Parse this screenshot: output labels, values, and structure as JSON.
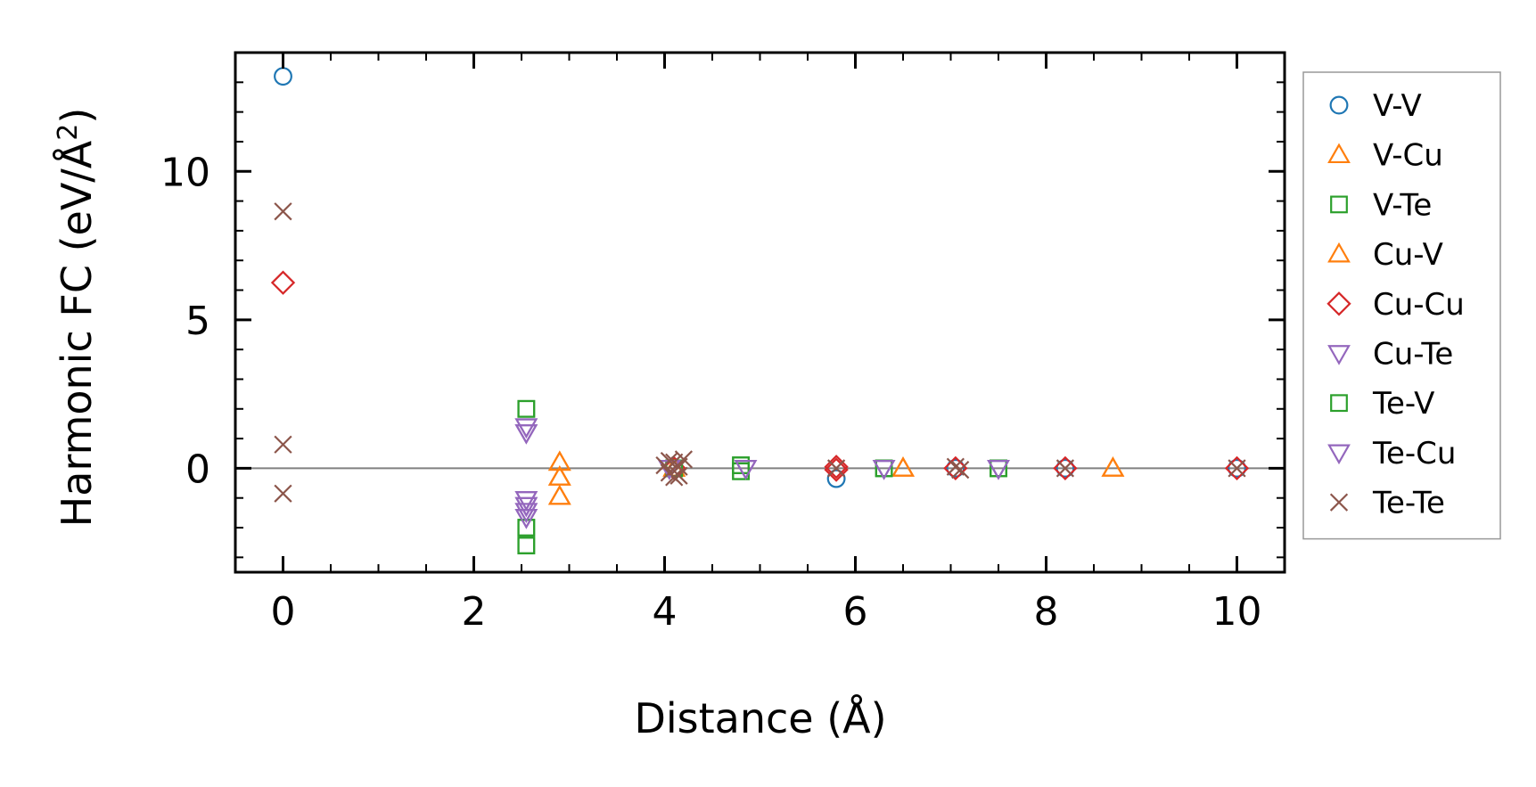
{
  "chart_data": {
    "type": "scatter",
    "xlabel": "Distance (Å)",
    "ylabel_main": "Harmonic FC (eV/Å",
    "ylabel_sup": "2",
    "ylabel_close": ")",
    "xlim": [
      -0.5,
      10.5
    ],
    "ylim": [
      -3.5,
      14
    ],
    "xticks": [
      0,
      2,
      4,
      6,
      8,
      10
    ],
    "xtick_labels": [
      "0",
      "2",
      "4",
      "6",
      "8",
      "10"
    ],
    "yticks": [
      0,
      5,
      10
    ],
    "ytick_labels": [
      "0",
      "5",
      "10"
    ],
    "grid": false,
    "legend_position": "outside-right",
    "zero_line": true,
    "series": [
      {
        "name": "V-V",
        "marker": "circle",
        "color": "#1f77b4",
        "points": [
          [
            0,
            13.2
          ],
          [
            5.8,
            -0.35
          ],
          [
            7.05,
            0
          ],
          [
            8.2,
            0
          ],
          [
            10,
            0
          ]
        ]
      },
      {
        "name": "V-Cu",
        "marker": "triangle-up",
        "color": "#ff7f0e",
        "points": [
          [
            2.9,
            0.2
          ],
          [
            2.9,
            -0.3
          ],
          [
            2.9,
            -0.95
          ],
          [
            4.1,
            0
          ],
          [
            6.5,
            0
          ],
          [
            8.7,
            0
          ]
        ]
      },
      {
        "name": "V-Te",
        "marker": "square",
        "color": "#2ca02c",
        "points": [
          [
            2.55,
            2.0
          ],
          [
            2.55,
            -2.0
          ],
          [
            2.55,
            -2.6
          ],
          [
            4.1,
            0
          ],
          [
            4.8,
            0.1
          ],
          [
            4.8,
            -0.1
          ],
          [
            6.3,
            0
          ],
          [
            7.5,
            0
          ]
        ]
      },
      {
        "name": "Cu-V",
        "marker": "triangle-up",
        "color": "#ff7f0e",
        "points": [
          [
            2.9,
            0.2
          ],
          [
            2.9,
            -0.3
          ],
          [
            2.9,
            -0.95
          ],
          [
            4.1,
            0
          ],
          [
            6.5,
            0
          ],
          [
            8.7,
            0
          ]
        ]
      },
      {
        "name": "Cu-Cu",
        "marker": "diamond",
        "color": "#d62728",
        "points": [
          [
            0,
            6.25
          ],
          [
            4.1,
            0
          ],
          [
            5.8,
            0.05
          ],
          [
            5.8,
            -0.05
          ],
          [
            7.05,
            0
          ],
          [
            8.2,
            0
          ],
          [
            10,
            0
          ]
        ]
      },
      {
        "name": "Cu-Te",
        "marker": "triangle-down",
        "color": "#9467bd",
        "points": [
          [
            2.55,
            1.4
          ],
          [
            2.55,
            1.2
          ],
          [
            2.55,
            -1.05
          ],
          [
            2.55,
            -1.25
          ],
          [
            2.55,
            -1.45
          ],
          [
            2.55,
            -1.65
          ],
          [
            4.05,
            0
          ],
          [
            4.85,
            0
          ],
          [
            6.3,
            0
          ],
          [
            7.5,
            0
          ]
        ]
      },
      {
        "name": "Te-V",
        "marker": "square",
        "color": "#2ca02c",
        "points": [
          [
            2.55,
            2.0
          ],
          [
            2.55,
            -2.0
          ],
          [
            2.55,
            -2.6
          ],
          [
            4.1,
            0
          ],
          [
            4.8,
            0.1
          ],
          [
            4.8,
            -0.1
          ],
          [
            6.3,
            0
          ],
          [
            7.5,
            0
          ]
        ]
      },
      {
        "name": "Te-Cu",
        "marker": "triangle-down",
        "color": "#9467bd",
        "points": [
          [
            2.55,
            1.4
          ],
          [
            2.55,
            1.2
          ],
          [
            2.55,
            -1.05
          ],
          [
            2.55,
            -1.25
          ],
          [
            2.55,
            -1.45
          ],
          [
            2.55,
            -1.65
          ],
          [
            4.05,
            0
          ],
          [
            4.85,
            0
          ],
          [
            6.3,
            0
          ],
          [
            7.5,
            0
          ]
        ]
      },
      {
        "name": "Te-Te",
        "marker": "x",
        "color": "#8c564b",
        "points": [
          [
            0,
            8.65
          ],
          [
            0,
            0.8
          ],
          [
            0,
            -0.85
          ],
          [
            4.0,
            0.1
          ],
          [
            4.05,
            -0.15
          ],
          [
            4.1,
            0.2
          ],
          [
            4.15,
            -0.25
          ],
          [
            4.2,
            0.3
          ],
          [
            4.15,
            0.05
          ],
          [
            4.05,
            0.25
          ],
          [
            4.1,
            -0.3
          ],
          [
            5.8,
            0
          ],
          [
            7.05,
            0.05
          ],
          [
            7.1,
            -0.05
          ],
          [
            8.2,
            0
          ],
          [
            10,
            0
          ]
        ]
      }
    ]
  }
}
